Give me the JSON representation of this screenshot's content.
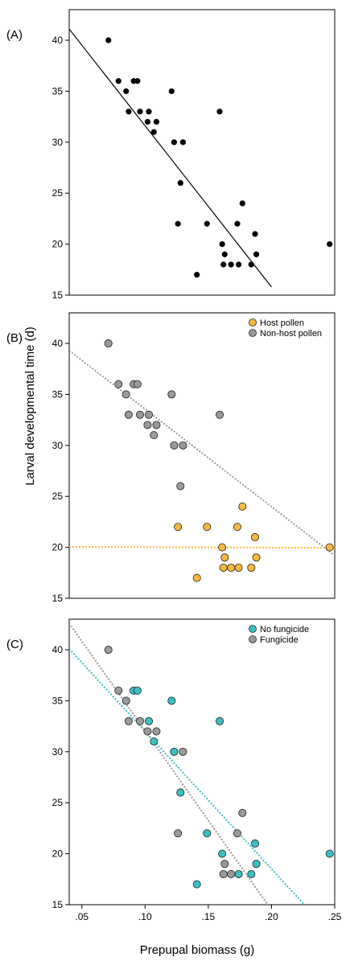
{
  "figure": {
    "ylabel": "Larval developmental time (d)",
    "xlabel": "Prepupal biomass (g)"
  },
  "chart_data": [
    {
      "type": "scatter",
      "panel_label": "(A)",
      "xlim": [
        0.04,
        0.25
      ],
      "ylim": [
        15,
        43
      ],
      "yticks": [
        15,
        20,
        25,
        30,
        35,
        40
      ],
      "show_xticks": false,
      "xticks": [],
      "legend": null,
      "series": [
        {
          "name": "",
          "color": "#000000",
          "points": [
            [
              0.071,
              40
            ],
            [
              0.079,
              36
            ],
            [
              0.085,
              35
            ],
            [
              0.087,
              33
            ],
            [
              0.091,
              36
            ],
            [
              0.094,
              36
            ],
            [
              0.096,
              33
            ],
            [
              0.102,
              32
            ],
            [
              0.103,
              33
            ],
            [
              0.107,
              31
            ],
            [
              0.109,
              32
            ],
            [
              0.121,
              35
            ],
            [
              0.123,
              30
            ],
            [
              0.126,
              22
            ],
            [
              0.128,
              26
            ],
            [
              0.13,
              30
            ],
            [
              0.141,
              17
            ],
            [
              0.149,
              22
            ],
            [
              0.159,
              33
            ],
            [
              0.161,
              20
            ],
            [
              0.162,
              18
            ],
            [
              0.163,
              19
            ],
            [
              0.168,
              18
            ],
            [
              0.173,
              22
            ],
            [
              0.174,
              18
            ],
            [
              0.177,
              24
            ],
            [
              0.184,
              18
            ],
            [
              0.187,
              21
            ],
            [
              0.188,
              19
            ],
            [
              0.246,
              20
            ]
          ],
          "trend": {
            "x": [
              0.04,
              0.2
            ],
            "y": [
              41.1,
              15.8
            ],
            "style": "solid"
          }
        }
      ]
    },
    {
      "type": "scatter",
      "panel_label": "(B)",
      "xlim": [
        0.04,
        0.25
      ],
      "ylim": [
        15,
        43
      ],
      "yticks": [
        15,
        20,
        25,
        30,
        35,
        40
      ],
      "show_xticks": false,
      "xticks": [],
      "legend": {
        "position": "top-right"
      },
      "series": [
        {
          "name": "Host pollen",
          "color": "#F5B93F",
          "points": [
            [
              0.126,
              22
            ],
            [
              0.149,
              22
            ],
            [
              0.161,
              20
            ],
            [
              0.163,
              19
            ],
            [
              0.162,
              18
            ],
            [
              0.168,
              18
            ],
            [
              0.173,
              22
            ],
            [
              0.174,
              18
            ],
            [
              0.177,
              24
            ],
            [
              0.184,
              18
            ],
            [
              0.187,
              21
            ],
            [
              0.188,
              19
            ],
            [
              0.141,
              17
            ],
            [
              0.246,
              20
            ]
          ],
          "trend": {
            "x": [
              0.04,
              0.25
            ],
            "y": [
              20.05,
              19.95
            ],
            "style": "dotted"
          }
        },
        {
          "name": "Non-host pollen",
          "color": "#9A9A9A",
          "points": [
            [
              0.071,
              40
            ],
            [
              0.079,
              36
            ],
            [
              0.085,
              35
            ],
            [
              0.087,
              33
            ],
            [
              0.091,
              36
            ],
            [
              0.094,
              36
            ],
            [
              0.096,
              33
            ],
            [
              0.102,
              32
            ],
            [
              0.103,
              33
            ],
            [
              0.107,
              31
            ],
            [
              0.109,
              32
            ],
            [
              0.121,
              35
            ],
            [
              0.123,
              30
            ],
            [
              0.13,
              30
            ],
            [
              0.128,
              26
            ],
            [
              0.159,
              33
            ]
          ],
          "trend": {
            "x": [
              0.04,
              0.25
            ],
            "y": [
              39.3,
              19.2
            ],
            "style": "dotted"
          }
        }
      ]
    },
    {
      "type": "scatter",
      "panel_label": "(C)",
      "xlim": [
        0.04,
        0.25
      ],
      "ylim": [
        15,
        43
      ],
      "yticks": [
        15,
        20,
        25,
        30,
        35,
        40
      ],
      "show_xticks": true,
      "xticks": [
        {
          "value": 0.05,
          "label": ".05"
        },
        {
          "value": 0.1,
          "label": ".10"
        },
        {
          "value": 0.15,
          "label": ".15"
        },
        {
          "value": 0.2,
          "label": ".20"
        },
        {
          "value": 0.25,
          "label": ".25"
        }
      ],
      "legend": {
        "position": "top-right"
      },
      "series": [
        {
          "name": "No fungicide",
          "color": "#3BBFC4",
          "points": [
            [
              0.091,
              36
            ],
            [
              0.094,
              36
            ],
            [
              0.103,
              33
            ],
            [
              0.107,
              31
            ],
            [
              0.121,
              35
            ],
            [
              0.123,
              30
            ],
            [
              0.128,
              26
            ],
            [
              0.149,
              22
            ],
            [
              0.159,
              33
            ],
            [
              0.161,
              20
            ],
            [
              0.141,
              17
            ],
            [
              0.174,
              18
            ],
            [
              0.184,
              18
            ],
            [
              0.187,
              21
            ],
            [
              0.188,
              19
            ],
            [
              0.246,
              20
            ]
          ],
          "trend": {
            "x": [
              0.04,
              0.226
            ],
            "y": [
              40.1,
              15.0
            ],
            "style": "dotted"
          }
        },
        {
          "name": "Fungicide",
          "color": "#9A9A9A",
          "points": [
            [
              0.071,
              40
            ],
            [
              0.079,
              36
            ],
            [
              0.085,
              35
            ],
            [
              0.087,
              33
            ],
            [
              0.096,
              33
            ],
            [
              0.102,
              32
            ],
            [
              0.109,
              32
            ],
            [
              0.13,
              30
            ],
            [
              0.126,
              22
            ],
            [
              0.162,
              18
            ],
            [
              0.163,
              19
            ],
            [
              0.168,
              18
            ],
            [
              0.173,
              22
            ],
            [
              0.177,
              24
            ]
          ],
          "trend": {
            "x": [
              0.04,
              0.197
            ],
            "y": [
              42.6,
              15.0
            ],
            "style": "dotted"
          }
        }
      ]
    }
  ]
}
